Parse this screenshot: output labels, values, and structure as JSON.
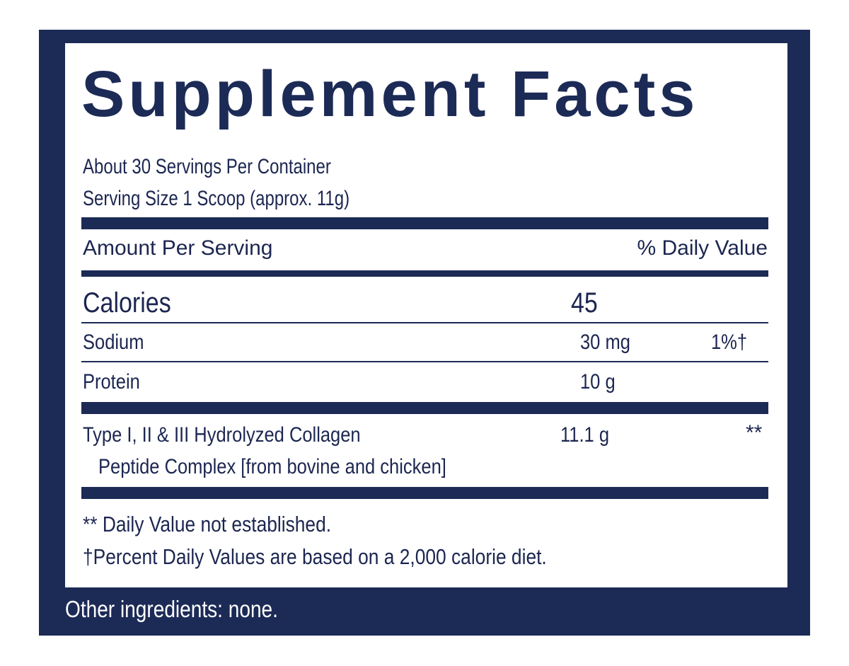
{
  "title": "Supplement Facts",
  "servings_per_container": "About 30 Servings Per Container",
  "serving_size": "Serving Size 1 Scoop (approx. 11g)",
  "header": {
    "amount_per_serving": "Amount Per Serving",
    "daily_value": "% Daily Value"
  },
  "calories": {
    "label": "Calories",
    "amount": "45"
  },
  "rows": [
    {
      "name": "Sodium",
      "amount": "30 mg",
      "dv": "1%†"
    },
    {
      "name": "Protein",
      "amount": "10 g",
      "dv": ""
    }
  ],
  "collagen": {
    "name_line1": "Type I, II & III Hydrolyzed Collagen",
    "name_line2": "Peptide Complex [from bovine and chicken]",
    "amount": "11.1 g",
    "dv": "**"
  },
  "footnotes": {
    "not_established": "** Daily Value not established.",
    "percent_basis": "†Percent Daily Values are based on a 2,000 calorie diet."
  },
  "other_ingredients": "Other ingredients: none."
}
